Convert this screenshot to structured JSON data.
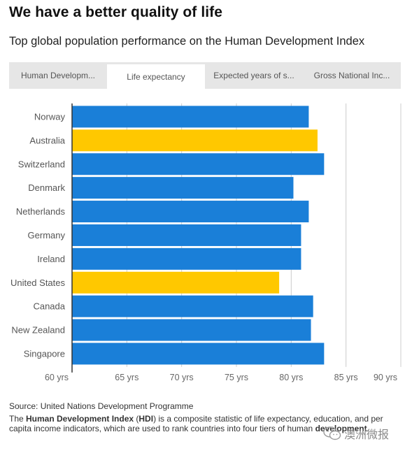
{
  "header": {
    "title": "We have a better quality of life",
    "subtitle": "Top global population performance on the Human Development Index"
  },
  "tabs": [
    {
      "label": "Human Developm...",
      "active": false
    },
    {
      "label": "Life expectancy",
      "active": true
    },
    {
      "label": "Expected years of s...",
      "active": false
    },
    {
      "label": "Gross National Inc...",
      "active": false
    }
  ],
  "colors": {
    "bar_default": "#1a7fd8",
    "bar_highlight": "#ffc800",
    "grid": "#cccccc",
    "axis": "#333333"
  },
  "chart_data": {
    "type": "bar",
    "orientation": "horizontal",
    "categories": [
      "Norway",
      "Australia",
      "Switzerland",
      "Denmark",
      "Netherlands",
      "Germany",
      "Ireland",
      "United States",
      "Canada",
      "New Zealand",
      "Singapore"
    ],
    "values": [
      81.6,
      82.4,
      83.0,
      80.2,
      81.6,
      80.9,
      80.9,
      78.9,
      82.0,
      81.8,
      83.0
    ],
    "highlighted": [
      "Australia",
      "United States"
    ],
    "xlim": [
      60,
      90
    ],
    "xticks": [
      60,
      65,
      70,
      75,
      80,
      85,
      90
    ],
    "xtick_labels": [
      "60 yrs",
      "65 yrs",
      "70 yrs",
      "75 yrs",
      "80 yrs",
      "85 yrs",
      "90 yrs"
    ],
    "grid": true
  },
  "footer": {
    "source": "Source: United Nations Development Programme",
    "note_1": "The ",
    "note_hdi": "Human Development Index",
    "note_2": " (",
    "note_abbr": "HDI",
    "note_3": ") is a composite statistic of life expectancy, education, and per capita income indicators, which are used to rank countries into four tiers of human ",
    "note_dev": "development",
    "note_4": "."
  },
  "watermark": {
    "text": "澳洲微报",
    "icon": "wechat-icon"
  }
}
